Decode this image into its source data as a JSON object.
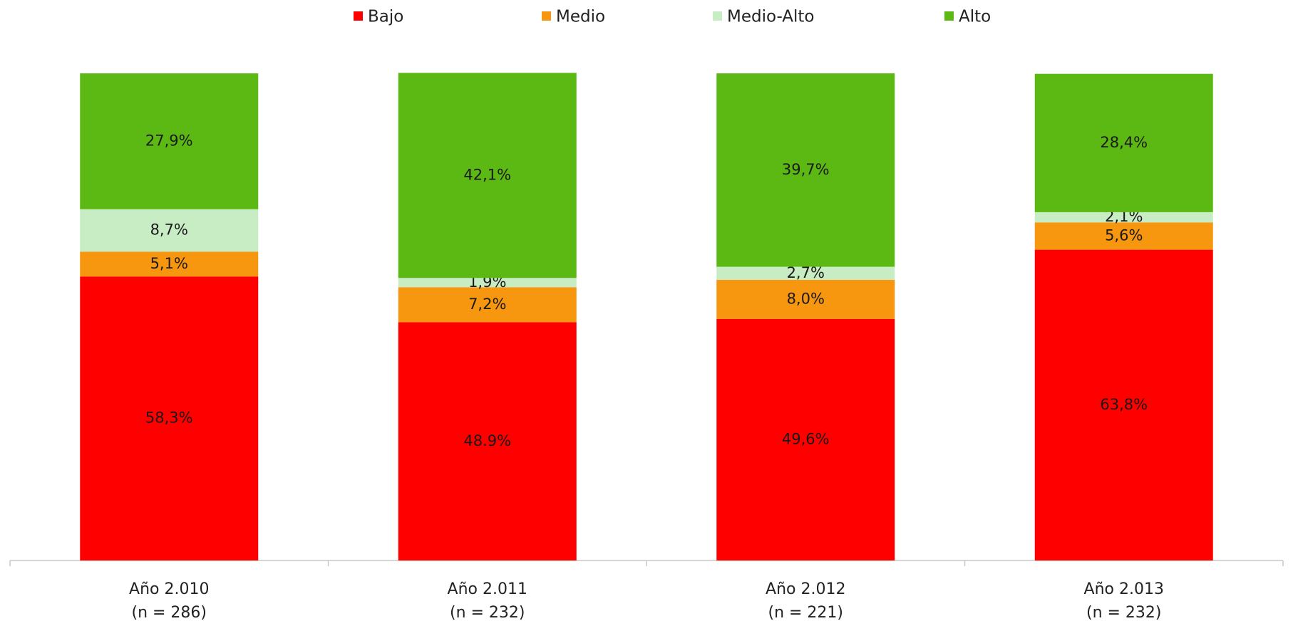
{
  "chart_data": {
    "type": "stacked_bar",
    "categories": [
      "Año 2.010",
      "Año 2.011",
      "Año 2.012",
      "Año 2.013"
    ],
    "category_sublabels": [
      "(n = 286)",
      "(n = 232)",
      "(n = 221)",
      "(n = 232)"
    ],
    "series": [
      {
        "name": "Bajo",
        "color": "#ff0000",
        "values": [
          58.3,
          48.9,
          49.6,
          63.8
        ],
        "value_labels": [
          "58,3%",
          "48.9%",
          "49,6%",
          "63,8%"
        ]
      },
      {
        "name": "Medio",
        "color": "#f7960f",
        "values": [
          5.1,
          7.2,
          8.0,
          5.6
        ],
        "value_labels": [
          "5,1%",
          "7,2%",
          "8,0%",
          "5,6%"
        ]
      },
      {
        "name": "Medio-Alto",
        "color": "#c8ecc4",
        "values": [
          8.7,
          1.9,
          2.7,
          2.1
        ],
        "value_labels": [
          "8,7%",
          "1,9%",
          "2,7%",
          "2,1%"
        ]
      },
      {
        "name": "Alto",
        "color": "#5cb914",
        "values": [
          27.9,
          42.1,
          39.7,
          28.4
        ],
        "value_labels": [
          "27,9%",
          "42,1%",
          "39,7%",
          "28,4%"
        ]
      }
    ],
    "ylim": [
      0,
      100
    ],
    "legend": "top"
  }
}
